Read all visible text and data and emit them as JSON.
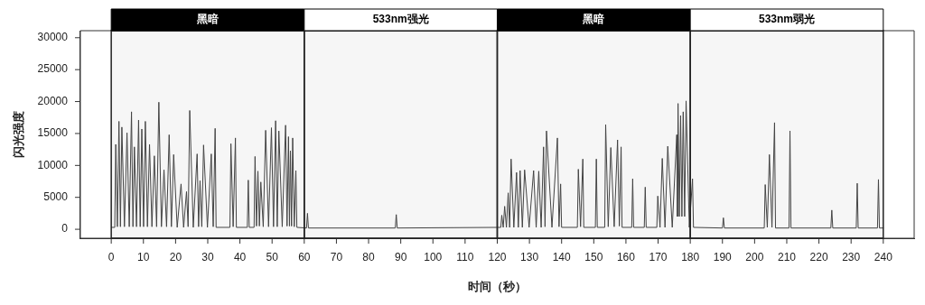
{
  "chart_data": {
    "type": "line",
    "xlabel": "时间（秒）",
    "ylabel": "闪光强度",
    "xlim": [
      -9.6,
      249.6
    ],
    "xticks": [
      0,
      10,
      20,
      30,
      40,
      50,
      60,
      70,
      80,
      90,
      100,
      110,
      120,
      130,
      140,
      150,
      160,
      170,
      180,
      190,
      200,
      210,
      220,
      230,
      240
    ],
    "ylim": [
      -1400,
      31100
    ],
    "yticks": [
      0,
      5000,
      10000,
      15000,
      20000,
      25000,
      30000
    ],
    "grid": false,
    "legend": false,
    "marker": "none",
    "line_style": "solid",
    "bands": [
      {
        "axis": "x",
        "from": 0,
        "to": 60,
        "label": "黑暗",
        "color": "#000000"
      },
      {
        "axis": "x",
        "from": 60,
        "to": 120,
        "label": "533nm强光"
      },
      {
        "axis": "x",
        "from": 120,
        "to": 180,
        "label": "黑暗",
        "color": "#000000"
      },
      {
        "axis": "x",
        "from": 180,
        "to": 240,
        "label": "533nm弱光"
      }
    ],
    "series": [
      {
        "color": "#444444",
        "x": [
          0,
          1.1,
          1.4,
          1.9,
          2.4,
          2.85,
          3.3,
          4.1,
          4.9,
          5.6,
          6.3,
          6.75,
          7.2,
          7.85,
          8.5,
          9.0,
          9.5,
          10.05,
          10.6,
          11.25,
          11.9,
          12.65,
          13.4,
          14.1,
          14.8,
          15.6,
          16.4,
          17.2,
          18.0,
          18.7,
          19.4,
          20.5,
          21.7,
          22.5,
          23.4,
          23.9,
          24.4,
          25.5,
          26.7,
          27.15,
          27.6,
          28.15,
          28.7,
          29.9,
          31.1,
          31.7,
          32.3,
          32.6,
          36.9,
          37.2,
          37.9,
          38.6,
          38.9,
          42.3,
          42.6,
          42.9,
          44.4,
          44.7,
          45.15,
          45.6,
          46.05,
          46.5,
          47.25,
          48.0,
          48.9,
          49.8,
          50.45,
          51.1,
          51.6,
          52.1,
          53.15,
          54.2,
          54.65,
          55.1,
          55.4,
          55.7,
          56.05,
          56.4,
          56.9,
          57.4,
          57.7,
          60.7,
          61.0,
          61.3,
          88.3,
          88.6,
          88.9,
          121.1,
          121.4,
          121.85,
          122.3,
          122.85,
          123.4,
          123.85,
          124.3,
          125.15,
          126.0,
          126.55,
          127.1,
          127.8,
          128.5,
          129.9,
          131.3,
          132.1,
          132.9,
          133.65,
          134.4,
          134.85,
          135.3,
          137.0,
          138.7,
          139.2,
          139.7,
          140.0,
          144.9,
          145.2,
          145.9,
          146.6,
          146.9,
          150.5,
          150.8,
          151.1,
          153.4,
          153.7,
          154.5,
          155.3,
          156.35,
          157.4,
          157.95,
          158.5,
          158.8,
          161.8,
          162.1,
          162.4,
          165.7,
          166.0,
          166.3,
          169.6,
          169.9,
          170.6,
          171.3,
          172.15,
          173.0,
          174.4,
          175.8,
          176.0,
          176.2,
          176.6,
          177.0,
          177.4,
          177.8,
          178.25,
          178.7,
          179.7,
          180.7,
          181.0,
          190.0,
          190.3,
          190.6,
          203.0,
          203.3,
          203.95,
          204.6,
          205.4,
          206.2,
          206.5,
          210.7,
          211.0,
          211.3,
          223.7,
          224.0,
          224.3,
          231.6,
          231.9,
          232.2,
          238.2,
          238.5,
          238.8,
          240
        ],
        "values": [
          300,
          300,
          13300,
          400,
          16900,
          400,
          16000,
          400,
          15100,
          400,
          18400,
          400,
          12900,
          400,
          17100,
          400,
          15700,
          400,
          16900,
          400,
          13300,
          400,
          11500,
          400,
          19900,
          400,
          9300,
          400,
          14800,
          400,
          11700,
          300,
          7100,
          300,
          5900,
          400,
          18600,
          300,
          11800,
          400,
          7600,
          400,
          13200,
          300,
          11800,
          400,
          15800,
          300,
          300,
          13400,
          400,
          14300,
          300,
          300,
          7700,
          300,
          300,
          11400,
          500,
          9100,
          500,
          7400,
          400,
          15500,
          400,
          15900,
          400,
          17000,
          400,
          15400,
          400,
          16300,
          500,
          14500,
          500,
          12300,
          500,
          14300,
          400,
          9200,
          300,
          200,
          2500,
          200,
          200,
          2300,
          200,
          300,
          2200,
          300,
          3600,
          300,
          5700,
          300,
          11000,
          300,
          8900,
          300,
          9200,
          300,
          9300,
          300,
          9200,
          300,
          9100,
          300,
          12900,
          400,
          15400,
          300,
          14300,
          400,
          7100,
          300,
          300,
          9400,
          400,
          11000,
          300,
          300,
          11000,
          300,
          300,
          16400,
          400,
          12800,
          400,
          14000,
          500,
          12900,
          300,
          300,
          7900,
          300,
          300,
          6600,
          300,
          300,
          5200,
          300,
          11100,
          300,
          13000,
          300,
          14800,
          2000,
          19700,
          2000,
          17800,
          2000,
          18400,
          2000,
          20100,
          300,
          7900,
          300,
          200,
          1800,
          200,
          200,
          7000,
          300,
          11700,
          300,
          16700,
          200,
          200,
          15400,
          200,
          200,
          3000,
          200,
          200,
          7200,
          200,
          200,
          7800,
          200,
          200
        ]
      }
    ]
  }
}
